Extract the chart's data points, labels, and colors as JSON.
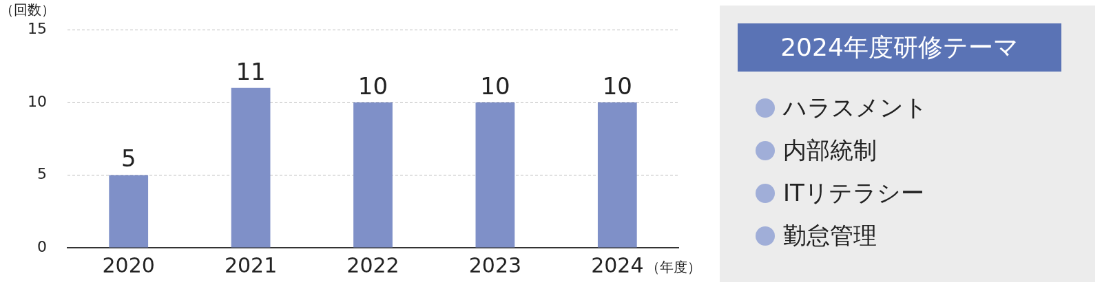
{
  "chart_data": [
    {
      "type": "bar",
      "ylabel": "（回数）",
      "xlabel": "（年度）",
      "categories": [
        "2020",
        "2021",
        "2022",
        "2023",
        "2024"
      ],
      "values": [
        5,
        11,
        10,
        10,
        10
      ],
      "color": "#7f90c8",
      "ylim": [
        0,
        15
      ],
      "yticks": [
        0,
        5,
        10,
        15
      ],
      "grid": "y",
      "data_labels": true
    },
    {
      "type": "other",
      "title": "2024年度研修テーマ",
      "annotations": [
        "ハラスメント",
        "内部統制",
        "ITリテラシー",
        "勤怠管理"
      ]
    }
  ]
}
